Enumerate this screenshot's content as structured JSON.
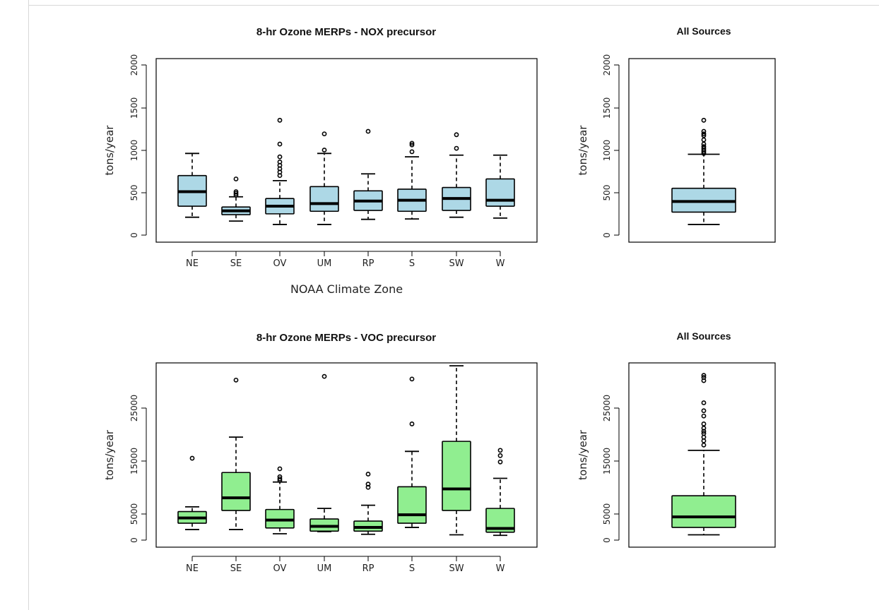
{
  "colors": {
    "nox_fill": "#add8e6",
    "voc_fill": "#90ee90",
    "stroke": "#000000",
    "background": "#ffffff"
  },
  "chart_data": [
    {
      "id": "nox-zones",
      "type": "box",
      "title": "8-hr Ozone MERPs - NOX precursor",
      "xlabel": "NOAA Climate Zone",
      "ylabel": "tons/year",
      "ylim": [
        0,
        2100
      ],
      "yticks": [
        "0",
        "500",
        "1000",
        "1500",
        "2000"
      ],
      "fill_color": "#add8e6",
      "categories": [
        "NE",
        "SE",
        "OV",
        "UM",
        "RP",
        "S",
        "SW",
        "W"
      ],
      "boxes": [
        {
          "category": "NE",
          "q1": 340,
          "median": 510,
          "q3": 700,
          "whisker_low": 210,
          "whisker_high": 960,
          "outliers": []
        },
        {
          "category": "SE",
          "q1": 240,
          "median": 285,
          "q3": 330,
          "whisker_low": 165,
          "whisker_high": 450,
          "outliers": [
            470,
            490,
            510,
            660
          ]
        },
        {
          "category": "OV",
          "q1": 250,
          "median": 340,
          "q3": 430,
          "whisker_low": 125,
          "whisker_high": 640,
          "outliers": [
            700,
            740,
            780,
            820,
            860,
            920,
            1070,
            1350
          ]
        },
        {
          "category": "UM",
          "q1": 280,
          "median": 370,
          "q3": 570,
          "whisker_low": 125,
          "whisker_high": 960,
          "outliers": [
            1000,
            1190
          ]
        },
        {
          "category": "RP",
          "q1": 290,
          "median": 400,
          "q3": 520,
          "whisker_low": 185,
          "whisker_high": 720,
          "outliers": [
            1220
          ]
        },
        {
          "category": "S",
          "q1": 280,
          "median": 410,
          "q3": 540,
          "whisker_low": 190,
          "whisker_high": 920,
          "outliers": [
            980,
            1060,
            1080
          ]
        },
        {
          "category": "SW",
          "q1": 290,
          "median": 430,
          "q3": 560,
          "whisker_low": 210,
          "whisker_high": 940,
          "outliers": [
            1020,
            1180
          ]
        },
        {
          "category": "W",
          "q1": 340,
          "median": 410,
          "q3": 660,
          "whisker_low": 200,
          "whisker_high": 940,
          "outliers": []
        }
      ]
    },
    {
      "id": "nox-all",
      "type": "box",
      "title": "All Sources",
      "xlabel": "",
      "ylabel": "tons/year",
      "ylim": [
        0,
        2100
      ],
      "yticks": [
        "0",
        "500",
        "1000",
        "1500",
        "2000"
      ],
      "fill_color": "#add8e6",
      "categories": [
        ""
      ],
      "boxes": [
        {
          "category": "All",
          "q1": 270,
          "median": 395,
          "q3": 550,
          "whisker_low": 125,
          "whisker_high": 950,
          "outliers": [
            960,
            980,
            1000,
            1020,
            1040,
            1070,
            1120,
            1170,
            1190,
            1220,
            1350
          ]
        }
      ]
    },
    {
      "id": "voc-zones",
      "type": "box",
      "title": "8-hr Ozone MERPs - VOC precursor",
      "xlabel": "",
      "ylabel": "tons/year",
      "ylim": [
        0,
        33000
      ],
      "yticks": [
        "0",
        "5000",
        "15000",
        "25000"
      ],
      "fill_color": "#90ee90",
      "categories": [
        "NE",
        "SE",
        "OV",
        "UM",
        "RP",
        "S",
        "SW",
        "W"
      ],
      "boxes": [
        {
          "category": "NE",
          "q1": 3200,
          "median": 4200,
          "q3": 5400,
          "whisker_low": 2000,
          "whisker_high": 6300,
          "outliers": [
            15500
          ]
        },
        {
          "category": "SE",
          "q1": 5600,
          "median": 8000,
          "q3": 12800,
          "whisker_low": 2000,
          "whisker_high": 19500,
          "outliers": [
            30300
          ]
        },
        {
          "category": "OV",
          "q1": 2300,
          "median": 3800,
          "q3": 5800,
          "whisker_low": 1200,
          "whisker_high": 11000,
          "outliers": [
            11300,
            11600,
            12000,
            13500
          ]
        },
        {
          "category": "UM",
          "q1": 1700,
          "median": 2600,
          "q3": 4000,
          "whisker_low": 1600,
          "whisker_high": 6000,
          "outliers": [
            31000
          ]
        },
        {
          "category": "RP",
          "q1": 1700,
          "median": 2400,
          "q3": 3600,
          "whisker_low": 1100,
          "whisker_high": 6600,
          "outliers": [
            10000,
            10600,
            12500
          ]
        },
        {
          "category": "S",
          "q1": 3200,
          "median": 4800,
          "q3": 10100,
          "whisker_low": 2400,
          "whisker_high": 16800,
          "outliers": [
            22000,
            30500
          ]
        },
        {
          "category": "SW",
          "q1": 5600,
          "median": 9700,
          "q3": 18700,
          "whisker_low": 1000,
          "whisker_high": 33000,
          "outliers": []
        },
        {
          "category": "W",
          "q1": 1500,
          "median": 2200,
          "q3": 6000,
          "whisker_low": 900,
          "whisker_high": 11700,
          "outliers": [
            14800,
            16000,
            17000
          ]
        }
      ]
    },
    {
      "id": "voc-all",
      "type": "box",
      "title": "All Sources",
      "xlabel": "",
      "ylabel": "tons/year",
      "ylim": [
        0,
        33000
      ],
      "yticks": [
        "0",
        "5000",
        "15000",
        "25000"
      ],
      "fill_color": "#90ee90",
      "categories": [
        ""
      ],
      "boxes": [
        {
          "category": "All",
          "q1": 2400,
          "median": 4400,
          "q3": 8400,
          "whisker_low": 1000,
          "whisker_high": 17000,
          "outliers": [
            18000,
            18800,
            19500,
            20200,
            20600,
            21200,
            22000,
            23500,
            24500,
            26000,
            30200,
            30800,
            31200
          ]
        }
      ]
    }
  ]
}
